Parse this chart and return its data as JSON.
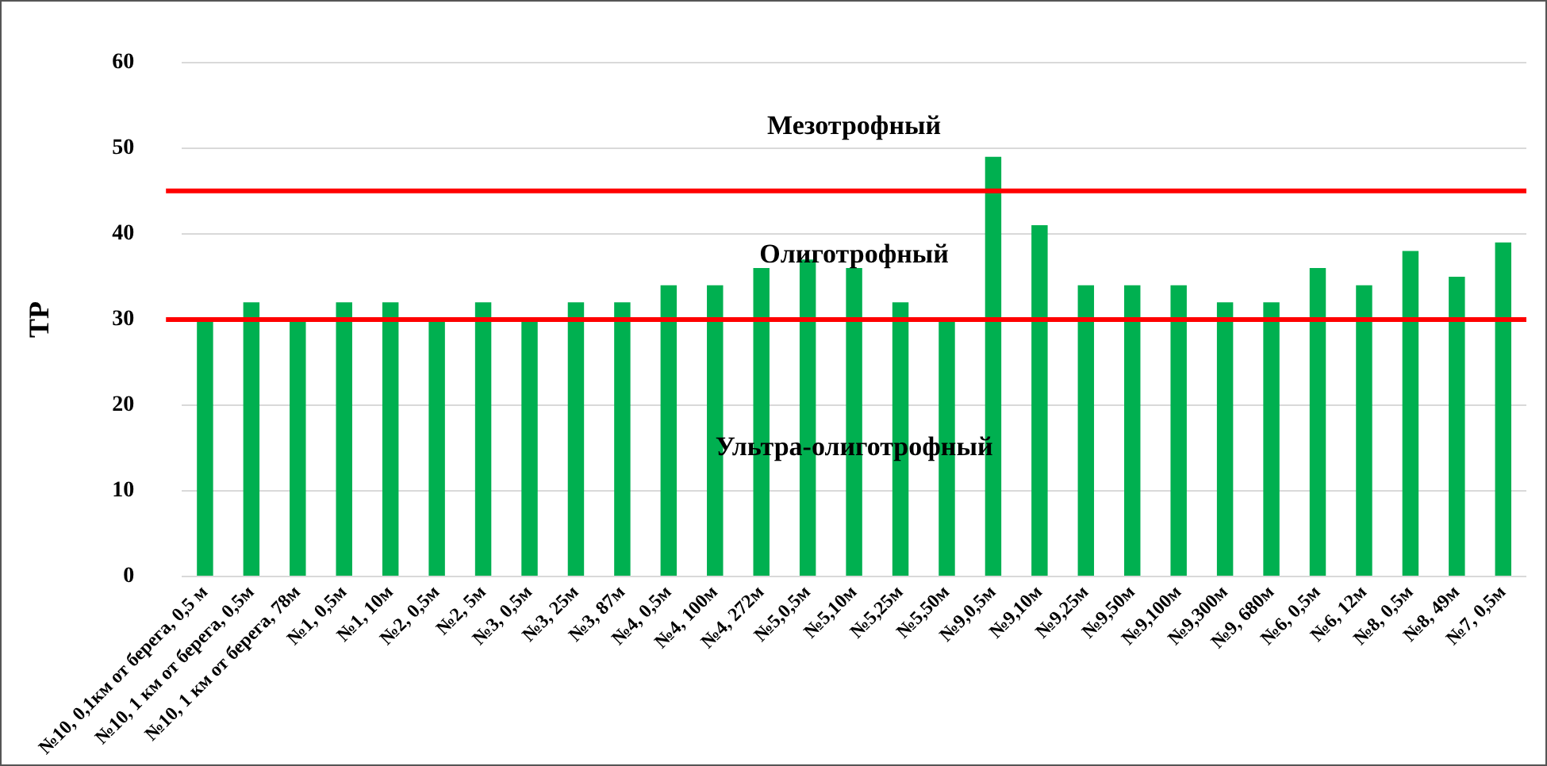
{
  "chart_data": {
    "type": "bar",
    "ylabel": "ТР",
    "categories": [
      "№10, 0,1км от берега, 0,5 м",
      "№10, 1 км от берега, 0,5м",
      "№10, 1 км от берега, 78м",
      "№1, 0,5м",
      "№1, 10м",
      "№2, 0,5м",
      "№2, 5м",
      "№3, 0,5м",
      "№3, 25м",
      "№3, 87м",
      "№4, 0,5м",
      "№4, 100м",
      "№4, 272м",
      "№5,0,5м",
      "№5,10м",
      "№5,25м",
      "№5,50м",
      "№9,0,5м",
      "№9,10м",
      "№9,25м",
      "№9,50м",
      "№9,100м",
      "№9,300м",
      "№9, 680м",
      "№6, 0,5м",
      "№6, 12м",
      "№8, 0,5м",
      "№8, 49м",
      "№7, 0,5м"
    ],
    "values": [
      30,
      32,
      30,
      32,
      32,
      30,
      32,
      30,
      32,
      32,
      34,
      34,
      36,
      37,
      36,
      32,
      30,
      49,
      41,
      34,
      34,
      34,
      32,
      32,
      36,
      34,
      38,
      35,
      39
    ],
    "color": "#00b050",
    "ylim": [
      0,
      60
    ],
    "yticks": [
      0,
      10,
      20,
      30,
      40,
      50,
      60
    ],
    "grid": "y",
    "ref_lines": [
      {
        "axis": "y",
        "value": 30,
        "color": "#ff0000"
      },
      {
        "axis": "y",
        "value": 45,
        "color": "#ff0000"
      }
    ],
    "annotations": [
      "Мезотрофный",
      "Олиготрофный",
      "Ультра-олиготрофный"
    ],
    "legend": false
  }
}
